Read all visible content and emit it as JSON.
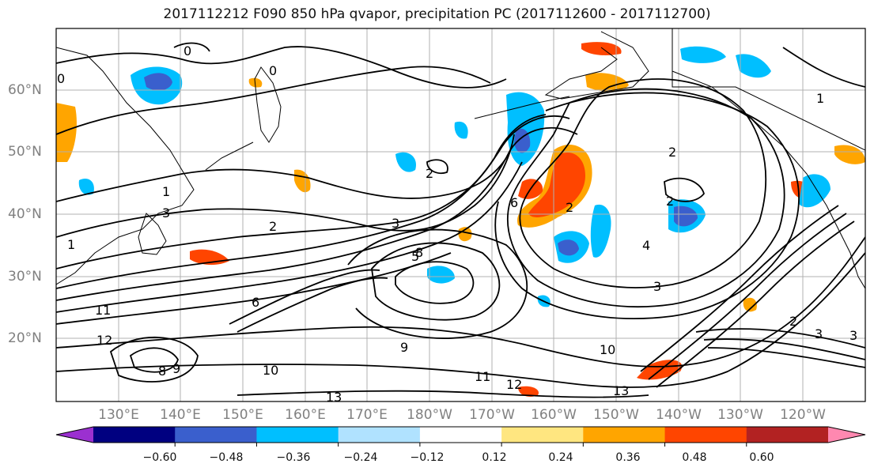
{
  "title": "2017112212 F090 850 hPa qvapor, precipitation PC (2017112600 - 2017112700)",
  "lat_labels": [
    "60°N",
    "50°N",
    "40°N",
    "30°N",
    "20°N"
  ],
  "lon_labels": [
    "130°E",
    "140°E",
    "150°E",
    "160°E",
    "170°E",
    "180°W",
    "170°W",
    "160°W",
    "150°W",
    "140°W",
    "130°W",
    "120°W"
  ],
  "colorbar": {
    "colors": [
      "#9b30d0",
      "#000080",
      "#3a5fcd",
      "#00bfff",
      "#b0e2ff",
      "#ffffff",
      "#ffe680",
      "#ffa500",
      "#ff4500",
      "#b22222",
      "#ff88b0"
    ],
    "tick_labels": [
      "−0.60",
      "−0.48",
      "−0.36",
      "−0.24",
      "−0.12",
      "0.12",
      "0.24",
      "0.36",
      "0.48",
      "0.60"
    ]
  },
  "contour_labels": [
    {
      "text": "0"
    },
    {
      "text": "0"
    },
    {
      "text": "0"
    },
    {
      "text": "1"
    },
    {
      "text": "3"
    },
    {
      "text": "1"
    },
    {
      "text": "2"
    },
    {
      "text": "2"
    },
    {
      "text": "3"
    },
    {
      "text": "5"
    },
    {
      "text": "8"
    },
    {
      "text": "6"
    },
    {
      "text": "2"
    },
    {
      "text": "2"
    },
    {
      "text": "2"
    },
    {
      "text": "4"
    },
    {
      "text": "3"
    },
    {
      "text": "11"
    },
    {
      "text": "12"
    },
    {
      "text": "8"
    },
    {
      "text": "9"
    },
    {
      "text": "10"
    },
    {
      "text": "13"
    },
    {
      "text": "11"
    },
    {
      "text": "12"
    },
    {
      "text": "10"
    },
    {
      "text": "13"
    },
    {
      "text": "2"
    },
    {
      "text": "3"
    },
    {
      "text": "3"
    },
    {
      "text": "1"
    },
    {
      "text": "6"
    },
    {
      "text": "9"
    }
  ]
}
